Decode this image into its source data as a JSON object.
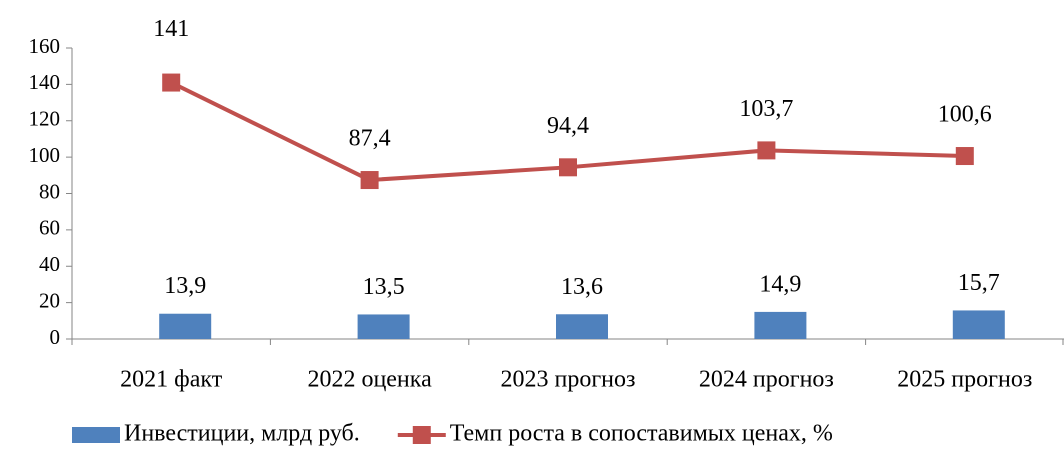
{
  "chart_data": {
    "type": "combo",
    "categories": [
      "2021 факт",
      "2022 оценка",
      "2023 прогноз",
      "2024 прогноз",
      "2025 прогноз"
    ],
    "series": [
      {
        "name": "Инвестиции, млрд руб.",
        "type": "bar",
        "color": "#4f81bd",
        "values": [
          13.9,
          13.5,
          13.6,
          14.9,
          15.7
        ],
        "value_labels": [
          "13,9",
          "13,5",
          "13,6",
          "14,9",
          "15,7"
        ]
      },
      {
        "name": "Темп роста в сопоставимых ценах, %",
        "type": "line",
        "color": "#c0504d",
        "values": [
          141,
          87.4,
          94.4,
          103.7,
          100.6
        ],
        "value_labels": [
          "141",
          "87,4",
          "94,4",
          "103,7",
          "100,6"
        ]
      }
    ],
    "ylim": [
      0,
      160
    ],
    "yticks": [
      0,
      20,
      40,
      60,
      80,
      100,
      120,
      140,
      160
    ],
    "grid": false,
    "legend": "bottom"
  }
}
